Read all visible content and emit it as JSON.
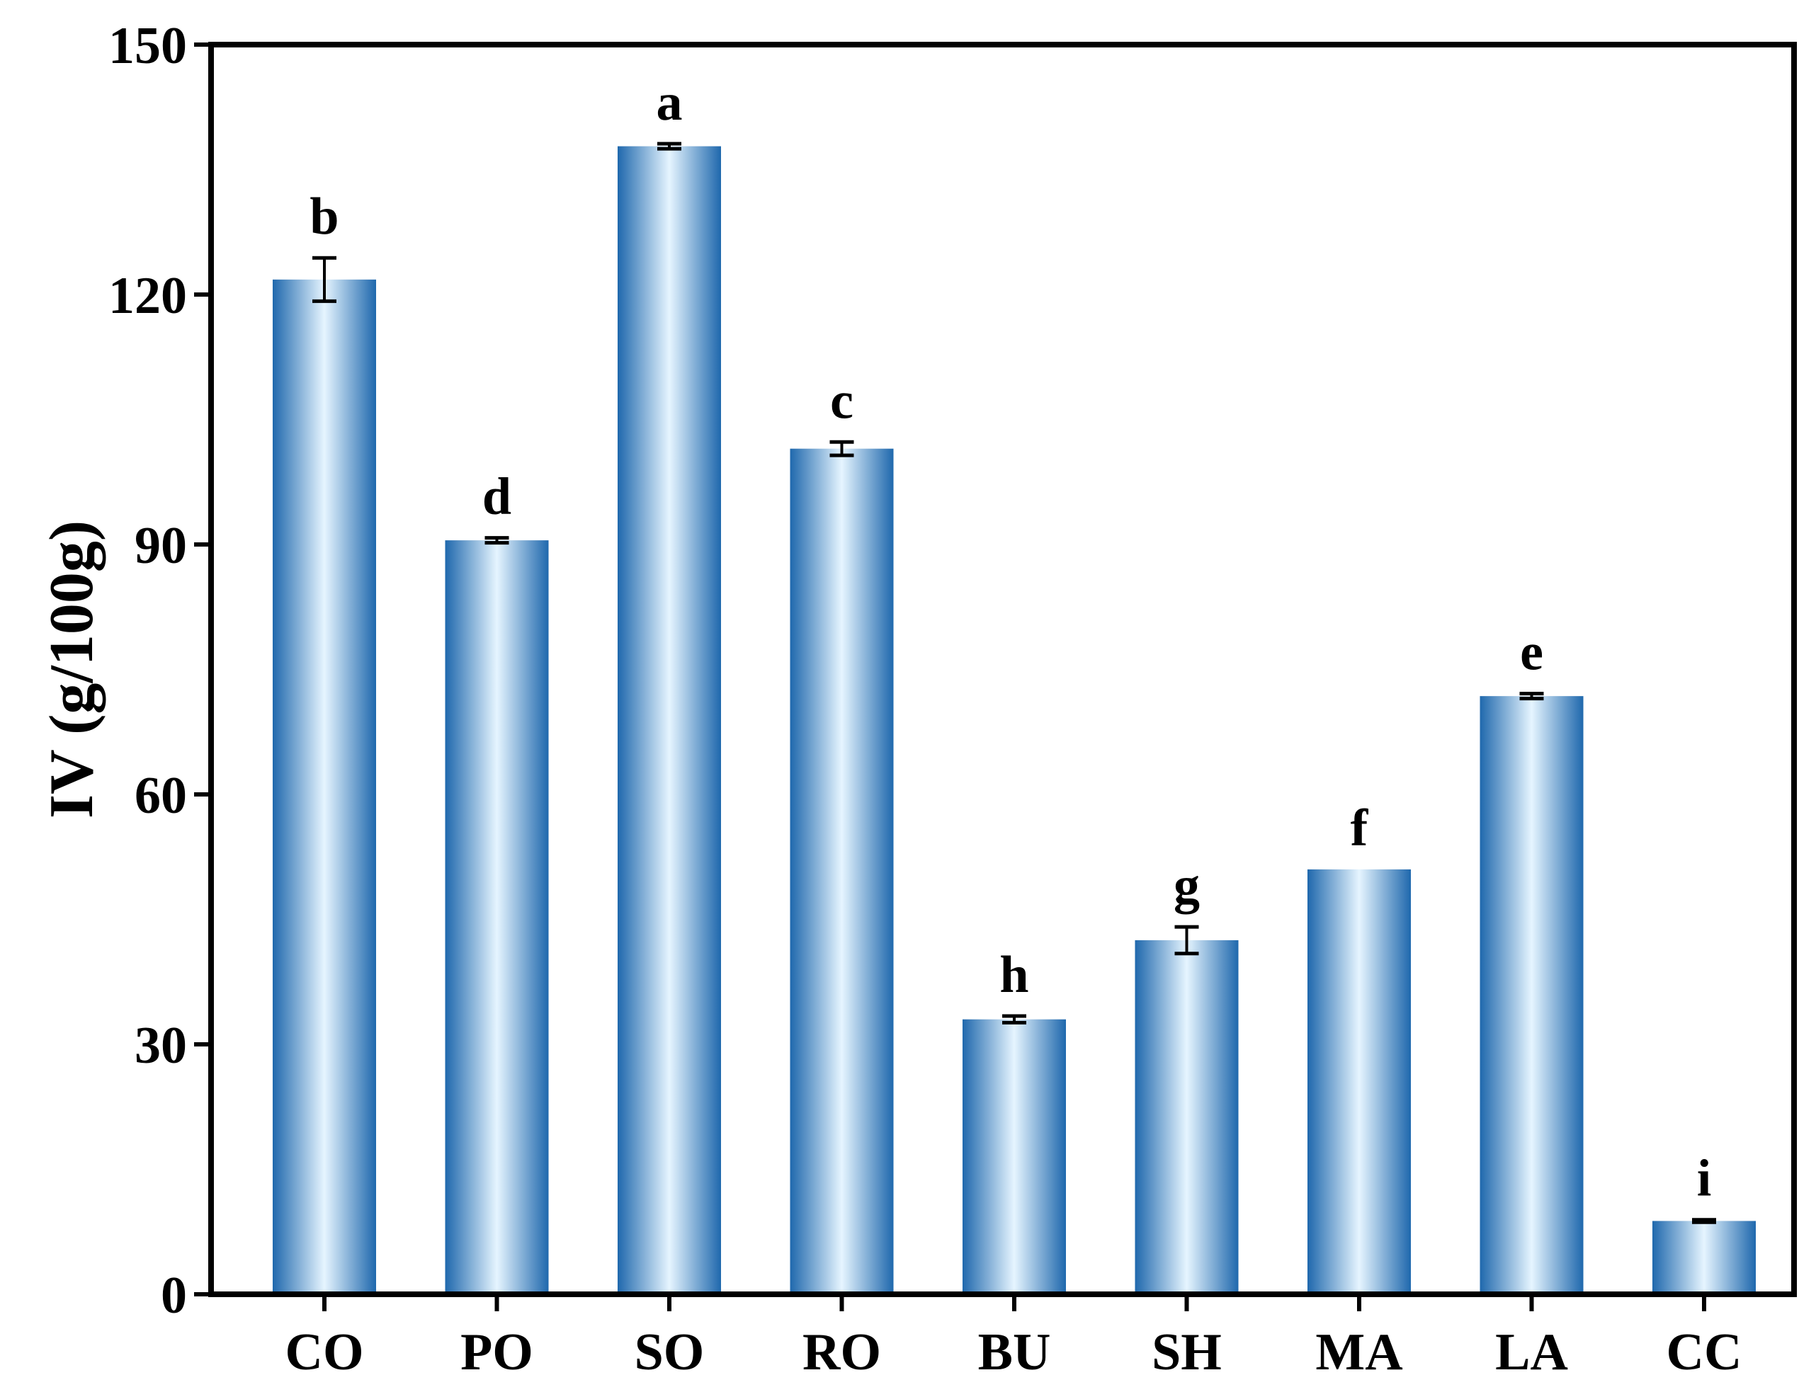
{
  "chart_data": {
    "type": "bar",
    "title": "",
    "xlabel": "",
    "ylabel": "IV (g/100g)",
    "ylim": [
      0,
      150
    ],
    "yticks": [
      0,
      30,
      60,
      90,
      120,
      150
    ],
    "ytick_labels": [
      "0",
      "30",
      "60",
      "90",
      "120",
      "150"
    ],
    "grid": false,
    "categories": [
      "CO",
      "PO",
      "SO",
      "RO",
      "BU",
      "SH",
      "MA",
      "LA",
      "CC"
    ],
    "values": [
      121.8,
      90.5,
      137.8,
      101.5,
      33.0,
      42.5,
      51.0,
      71.8,
      8.8
    ],
    "errors": [
      2.6,
      0.3,
      0.3,
      0.8,
      0.4,
      1.6,
      0.0,
      0.3,
      0.15
    ],
    "significance": [
      "b",
      "d",
      "a",
      "c",
      "h",
      "g",
      "f",
      "e",
      "i"
    ],
    "colors": {
      "bar_edge": "#1f68ad",
      "bar_center": "#e6f5ff",
      "axis": "#000000"
    }
  }
}
